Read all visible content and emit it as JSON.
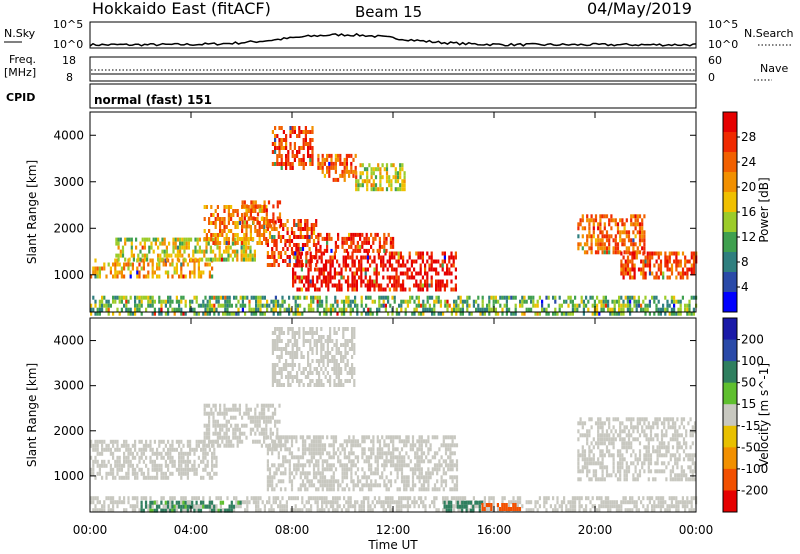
{
  "header": {
    "station": "Hokkaido East (fitACF)",
    "beam": "Beam 15",
    "date": "04/May/2019"
  },
  "top_panels": {
    "nsky_label": "N.Sky",
    "nsky_ticks": [
      "10^5",
      "10^0"
    ],
    "nsearch_label": "N.Search",
    "nsearch_ticks": [
      "10^5",
      "10^0"
    ],
    "freq_label_1": "Freq.",
    "freq_label_2": "[MHz]",
    "freq_ticks": [
      "18",
      "8"
    ],
    "nave_label": "Nave",
    "nave_ticks": [
      "60",
      "0"
    ],
    "cpid_label": "CPID",
    "cpid_text": "normal (fast) 151"
  },
  "colors": {
    "power_scale": [
      "#0000ff",
      "#2a4aa8",
      "#2f7f7f",
      "#3fa04f",
      "#9ccc2a",
      "#f0c000",
      "#f29000",
      "#f26000",
      "#f02a00",
      "#e60000"
    ],
    "velocity_scale": [
      "#1a1aa8",
      "#2a4aa8",
      "#2f7f5f",
      "#5fbf2f",
      "#c8c8c0",
      "#e8c000",
      "#f29000",
      "#f25000",
      "#e60000"
    ],
    "grey_fill": "#c8c8c0"
  },
  "chart_data": [
    {
      "type": "heatmap",
      "name": "power-panel",
      "xlabel": "",
      "ylabel": "Slant Range [km]",
      "xlim": [
        "00:00",
        "24:00"
      ],
      "ylim": [
        200,
        4500
      ],
      "y_ticks": [
        1000,
        2000,
        3000,
        4000
      ],
      "colorbar_label": "Power [dB]",
      "colorbar_ticks": [
        4,
        8,
        12,
        16,
        20,
        24,
        28
      ],
      "colorbar_range": [
        0,
        32
      ],
      "regions": [
        {
          "t0": 0.0,
          "t1": 4.8,
          "r0": 950,
          "r1": 1350,
          "level": 20
        },
        {
          "t0": 1.0,
          "t1": 6.5,
          "r0": 1350,
          "r1": 1800,
          "level": 16
        },
        {
          "t0": 4.5,
          "t1": 7.0,
          "r0": 1700,
          "r1": 2500,
          "level": 22
        },
        {
          "t0": 6.0,
          "t1": 7.5,
          "r0": 2000,
          "r1": 2600,
          "level": 24
        },
        {
          "t0": 7.0,
          "t1": 9.0,
          "r0": 1200,
          "r1": 2200,
          "level": 26
        },
        {
          "t0": 8.0,
          "t1": 14.5,
          "r0": 700,
          "r1": 1500,
          "level": 30
        },
        {
          "t0": 9.0,
          "t1": 12.0,
          "r0": 1500,
          "r1": 1900,
          "level": 28
        },
        {
          "t0": 7.2,
          "t1": 8.8,
          "r0": 3300,
          "r1": 4200,
          "level": 26
        },
        {
          "t0": 9.0,
          "t1": 10.5,
          "r0": 3000,
          "r1": 3600,
          "level": 24
        },
        {
          "t0": 10.5,
          "t1": 12.5,
          "r0": 2800,
          "r1": 3400,
          "level": 16
        },
        {
          "t0": 19.3,
          "t1": 22.0,
          "r0": 1500,
          "r1": 2300,
          "level": 24
        },
        {
          "t0": 21.0,
          "t1": 24.0,
          "r0": 950,
          "r1": 1500,
          "level": 26
        },
        {
          "t0": 0.0,
          "t1": 24.0,
          "r0": 200,
          "r1": 550,
          "level": 12
        }
      ]
    },
    {
      "type": "heatmap",
      "name": "velocity-panel",
      "xlabel": "Time UT",
      "ylabel": "Slant Range [km]",
      "xlim": [
        "00:00",
        "24:00"
      ],
      "x_ticks": [
        "00:00",
        "04:00",
        "08:00",
        "12:00",
        "16:00",
        "20:00",
        "00:00"
      ],
      "ylim": [
        200,
        4500
      ],
      "y_ticks": [
        1000,
        2000,
        3000,
        4000
      ],
      "colorbar_label": "Velocity [m s^-1]",
      "colorbar_ticks": [
        200,
        100,
        50,
        15,
        -15,
        -50,
        -100,
        -200
      ],
      "regions": [
        {
          "t0": 0.0,
          "t1": 5.0,
          "r0": 950,
          "r1": 1800,
          "level": 0
        },
        {
          "t0": 4.5,
          "t1": 7.5,
          "r0": 1700,
          "r1": 2600,
          "level": 0
        },
        {
          "t0": 7.0,
          "t1": 14.5,
          "r0": 700,
          "r1": 1900,
          "level": 0
        },
        {
          "t0": 7.2,
          "t1": 10.5,
          "r0": 3000,
          "r1": 4300,
          "level": 0
        },
        {
          "t0": 19.3,
          "t1": 24.0,
          "r0": 950,
          "r1": 2300,
          "level": 0
        },
        {
          "t0": 0.0,
          "t1": 24.0,
          "r0": 200,
          "r1": 550,
          "level": 0
        },
        {
          "t0": 2.0,
          "t1": 6.0,
          "r0": 250,
          "r1": 450,
          "level": 60
        },
        {
          "t0": 14.0,
          "t1": 15.5,
          "r0": 250,
          "r1": 450,
          "level": 80
        },
        {
          "t0": 15.5,
          "t1": 17.0,
          "r0": 250,
          "r1": 400,
          "level": -120
        }
      ]
    }
  ]
}
